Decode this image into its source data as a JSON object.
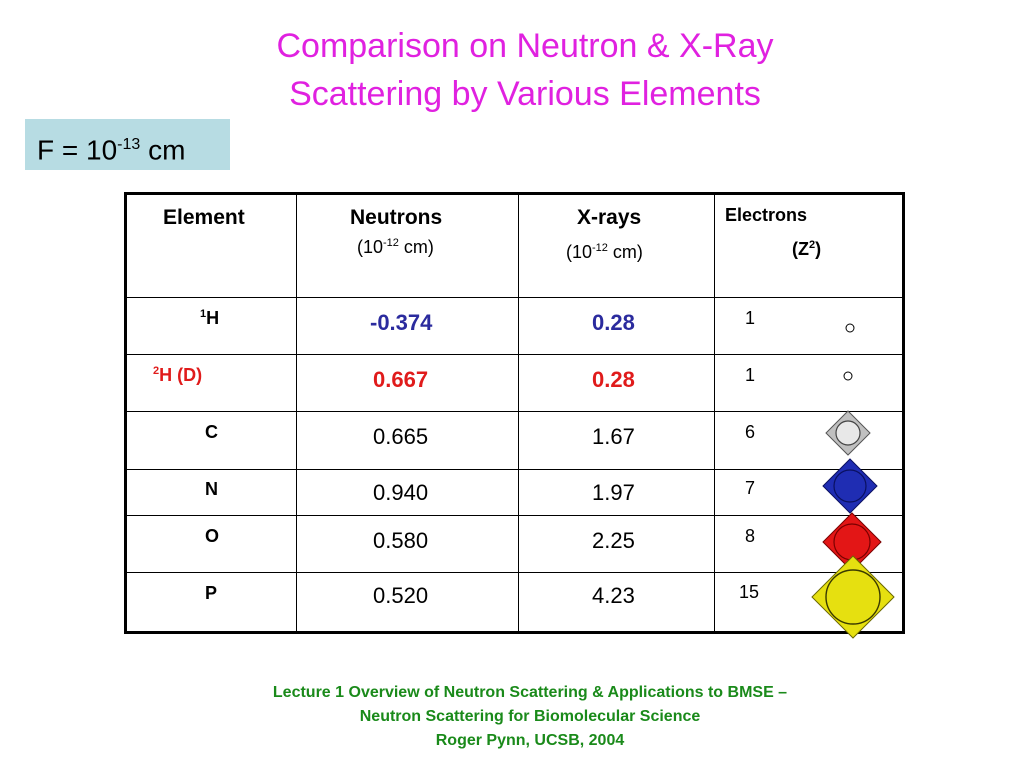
{
  "title": {
    "line1": "Comparison on Neutron & X-Ray",
    "line2": "Scattering by Various Elements"
  },
  "unit_box": {
    "prefix": "F = 10",
    "exponent": "-13",
    "suffix": " cm"
  },
  "table": {
    "headers": {
      "element": "Element",
      "neutrons": "Neutrons",
      "neutrons_unit_pre": "(10",
      "neutrons_unit_exp": "-12",
      "neutrons_unit_post": " cm)",
      "xrays": "X-rays",
      "xrays_unit_pre": "(10",
      "xrays_unit_exp": "-12",
      "xrays_unit_post": " cm)",
      "electrons": "Electrons",
      "electrons_unit_pre": "(Z",
      "electrons_unit_exp": "2",
      "electrons_unit_post": ")"
    },
    "rows": [
      {
        "iso": "1",
        "element": "H",
        "neutrons": "-0.374",
        "xrays": "0.28",
        "z2": "1",
        "atom_color": "#ffffff"
      },
      {
        "iso": "2",
        "element": "H (D)",
        "neutrons": "0.667",
        "xrays": "0.28",
        "z2": "1",
        "atom_color": "#ffffff"
      },
      {
        "iso": "",
        "element": "C",
        "neutrons": "0.665",
        "xrays": "1.67",
        "z2": "6",
        "atom_color": "#c0c0c0"
      },
      {
        "iso": "",
        "element": "N",
        "neutrons": "0.940",
        "xrays": "1.97",
        "z2": "7",
        "atom_color": "#1f2db3"
      },
      {
        "iso": "",
        "element": "O",
        "neutrons": "0.580",
        "xrays": "2.25",
        "z2": "8",
        "atom_color": "#e31616"
      },
      {
        "iso": "",
        "element": "P",
        "neutrons": "0.520",
        "xrays": "4.23",
        "z2": "15",
        "atom_color": "#e6e010"
      }
    ]
  },
  "colors": {
    "title": "#e021e0",
    "unit_box_bg": "#b7dce3",
    "hydrogen_values": "#2b2b9e",
    "deuterium_values": "#e01b1b",
    "footer": "#1a8a1a"
  },
  "footer": {
    "line1": "Lecture 1 Overview of Neutron Scattering & Applications to BMSE –",
    "line2": "Neutron Scattering for Biomolecular Science",
    "line3": "Roger Pynn, UCSB, 2004"
  }
}
